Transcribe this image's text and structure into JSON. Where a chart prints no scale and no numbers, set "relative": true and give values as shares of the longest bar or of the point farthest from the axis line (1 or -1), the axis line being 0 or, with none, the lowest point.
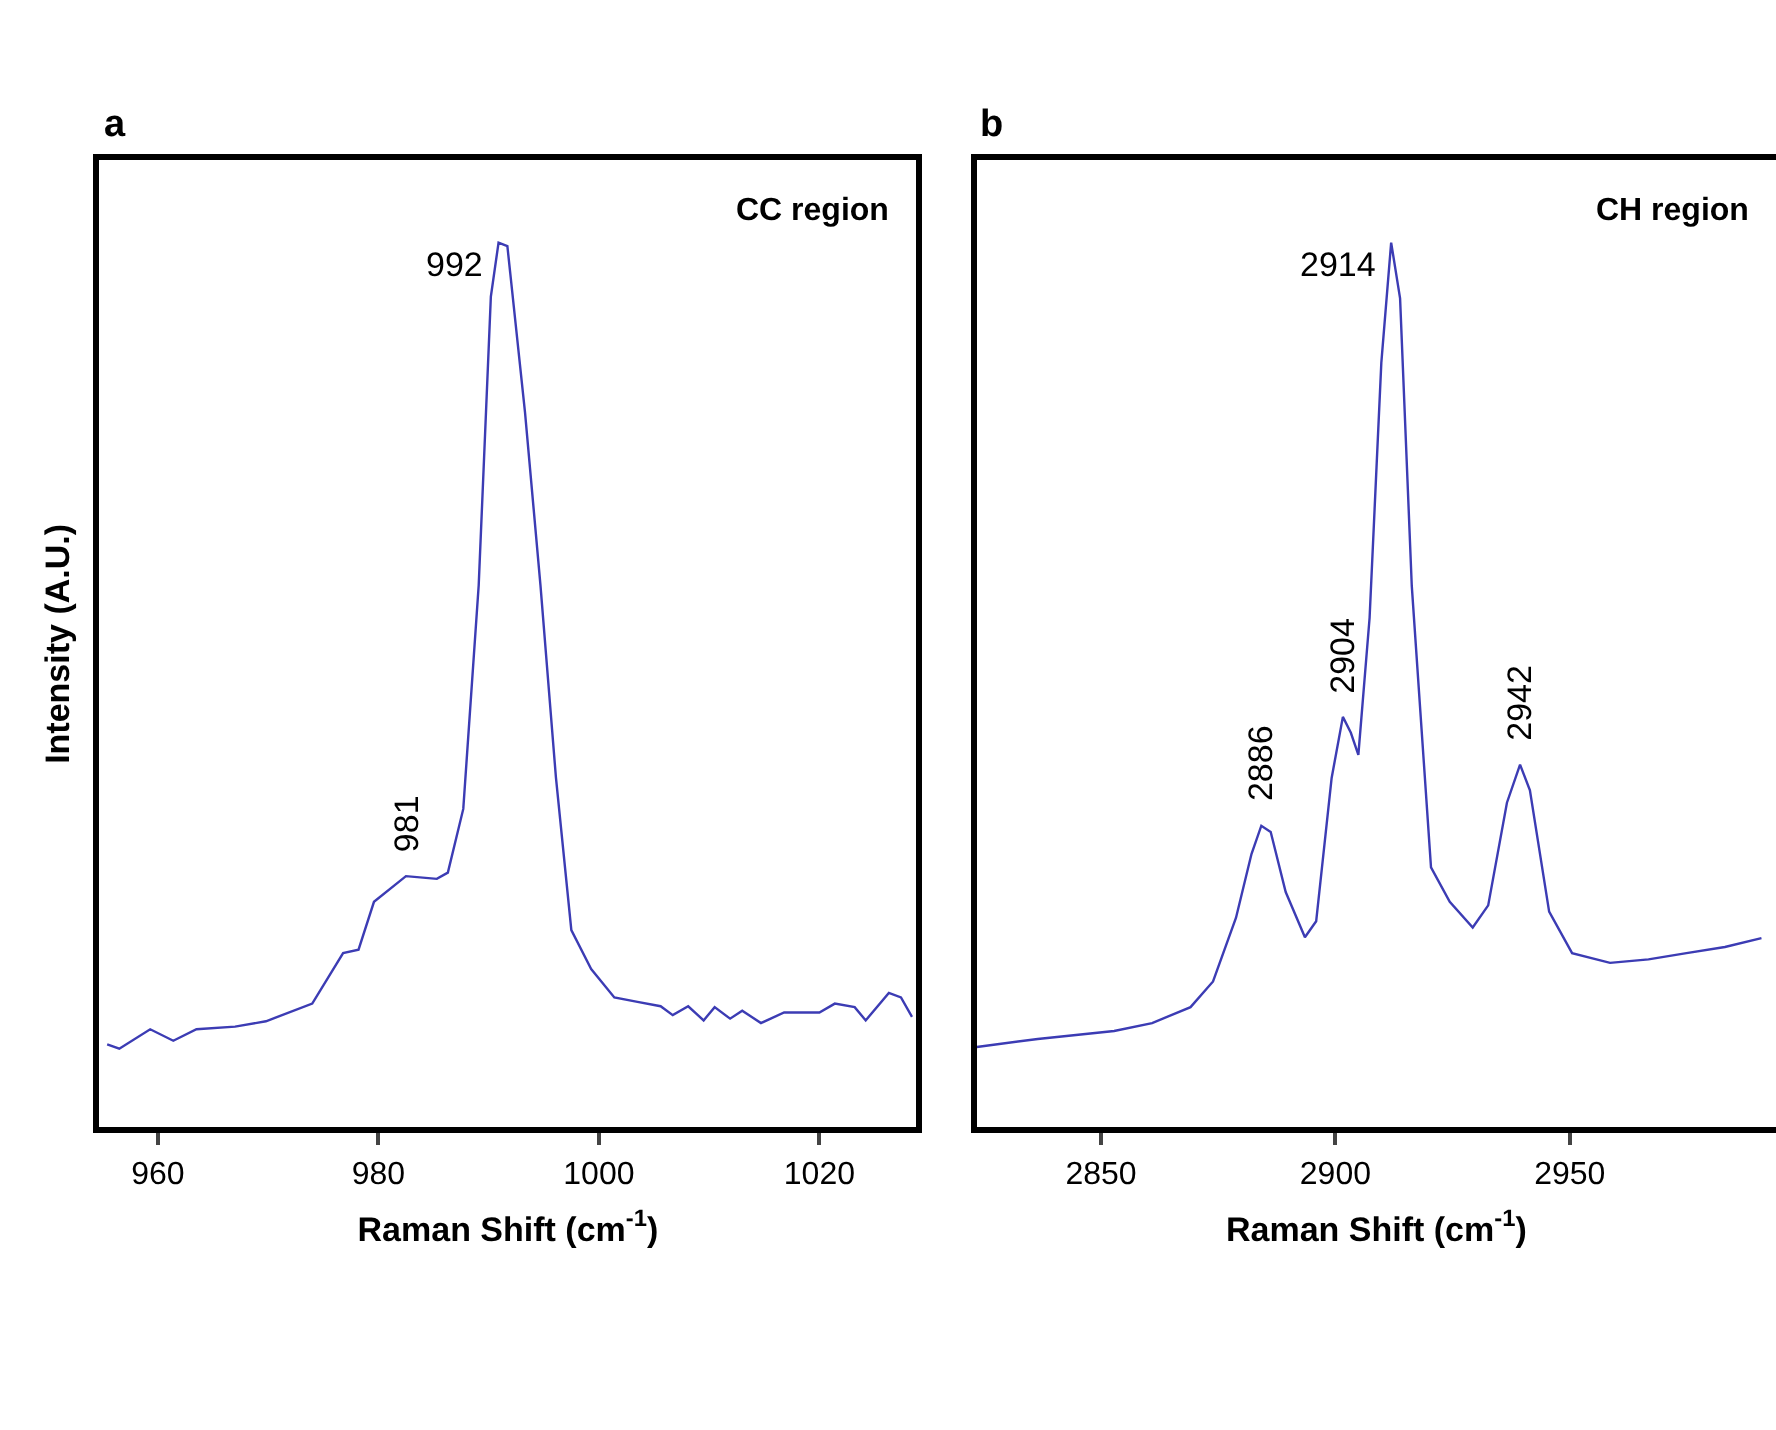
{
  "chart_data": [
    {
      "type": "line",
      "title": "a",
      "xlabel": "Raman Shift (cm$^{-1}$)",
      "ylabel": "Intensity (A.U.)",
      "relative": true,
      "xlim": [
        954.7,
        1028.8
      ],
      "xticks": [
        960,
        980,
        1000,
        1020
      ],
      "x": [
        955.4,
        956.5,
        959.3,
        961.4,
        963.5,
        967.0,
        969.8,
        974.0,
        976.8,
        978.2,
        979.6,
        982.5,
        985.3,
        986.3,
        987.7,
        989.1,
        990.2,
        990.9,
        991.7,
        993.3,
        994.7,
        996.1,
        997.5,
        999.3,
        1001.4,
        1003.5,
        1005.6,
        1006.7,
        1008.1,
        1009.5,
        1010.5,
        1011.9,
        1013.0,
        1014.7,
        1016.8,
        1020.0,
        1021.4,
        1023.2,
        1024.2,
        1026.3,
        1027.4,
        1028.4
      ],
      "series": [
        {
          "color": "#3c3cb4",
          "values": [
            0.094,
            0.089,
            0.111,
            0.098,
            0.111,
            0.114,
            0.12,
            0.14,
            0.197,
            0.201,
            0.255,
            0.284,
            0.281,
            0.288,
            0.36,
            0.613,
            0.939,
            1.0,
            0.996,
            0.808,
            0.613,
            0.396,
            0.223,
            0.179,
            0.147,
            0.142,
            0.137,
            0.127,
            0.137,
            0.121,
            0.136,
            0.123,
            0.132,
            0.118,
            0.13,
            0.13,
            0.14,
            0.136,
            0.121,
            0.152,
            0.147,
            0.125
          ]
        }
      ],
      "annotations": [
        "CC region",
        {
          "text": "992",
          "x": 990.9,
          "y": 1.0
        },
        {
          "text": "981",
          "x": 982.5,
          "y": 0.284
        }
      ]
    },
    {
      "type": "line",
      "title": "b",
      "xlabel": "Raman Shift (cm$^{-1}$)",
      "relative": true,
      "xlim": [
        2823.5,
        2994
      ],
      "xticks": [
        2850,
        2900,
        2950
      ],
      "x": [
        2823.5,
        2836.5,
        2852.8,
        2860.9,
        2869.1,
        2873.9,
        2878.8,
        2882.1,
        2884.2,
        2886.2,
        2889.4,
        2893.5,
        2895.9,
        2899.2,
        2901.6,
        2903.3,
        2904.9,
        2907.3,
        2909.8,
        2911.9,
        2913.8,
        2916.3,
        2920.4,
        2924.4,
        2929.3,
        2932.6,
        2936.6,
        2939.4,
        2941.5,
        2945.6,
        2950.5,
        2958.6,
        2966.8,
        2974.9,
        2983.1,
        2990.9
      ],
      "series": [
        {
          "color": "#3c3cb4",
          "values": [
            0.091,
            0.1,
            0.109,
            0.118,
            0.136,
            0.165,
            0.237,
            0.309,
            0.341,
            0.334,
            0.266,
            0.215,
            0.233,
            0.395,
            0.464,
            0.446,
            0.421,
            0.576,
            0.864,
            1.0,
            0.937,
            0.612,
            0.294,
            0.255,
            0.226,
            0.251,
            0.367,
            0.41,
            0.381,
            0.244,
            0.197,
            0.186,
            0.19,
            0.197,
            0.204,
            0.214
          ]
        }
      ],
      "annotations": [
        "CH region",
        {
          "text": "2914",
          "x": 2911.9,
          "y": 1.0
        },
        {
          "text": "2886",
          "x": 2884.2,
          "y": 0.341
        },
        {
          "text": "2904",
          "x": 2901.6,
          "y": 0.464
        },
        {
          "text": "2942",
          "x": 2939.4,
          "y": 0.41
        }
      ]
    }
  ]
}
